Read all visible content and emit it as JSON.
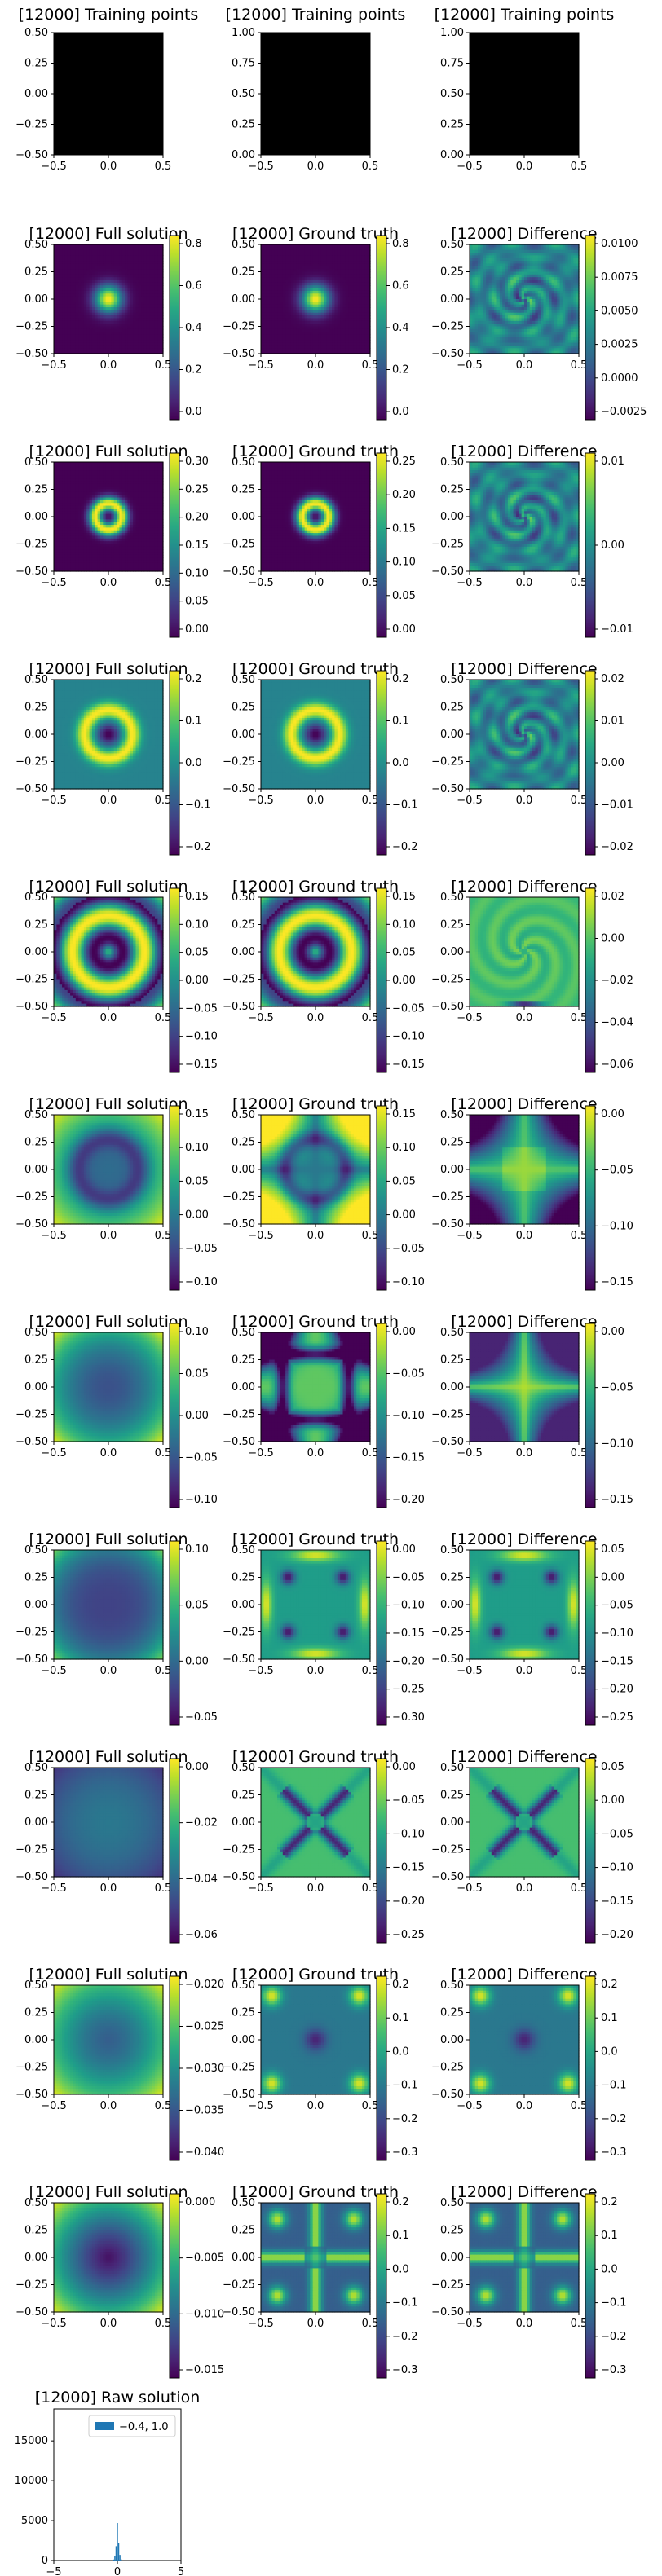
{
  "figure": {
    "background": "#ffffff"
  },
  "chart_data": [
    {
      "type": "scatter",
      "title": "[12000] Training points",
      "xlim": [
        -0.5,
        0.5
      ],
      "ylim": [
        -0.5,
        0.5
      ],
      "xticks": [
        "−0.5",
        "0.0",
        "0.5"
      ],
      "yticks": [
        "−0.50",
        "−0.25",
        "0.00",
        "0.25",
        "0.50"
      ],
      "fill": "#000000"
    },
    {
      "type": "scatter",
      "title": "[12000] Training points",
      "xlim": [
        -0.5,
        0.5
      ],
      "ylim": [
        0.0,
        1.0
      ],
      "xticks": [
        "−0.5",
        "0.0",
        "0.5"
      ],
      "yticks": [
        "0.00",
        "0.25",
        "0.50",
        "0.75",
        "1.00"
      ],
      "fill": "#000000"
    },
    {
      "type": "scatter",
      "title": "[12000] Training points",
      "xlim": [
        -0.5,
        0.5
      ],
      "ylim": [
        0.0,
        1.0
      ],
      "xticks": [
        "−0.5",
        "0.0",
        "0.5"
      ],
      "yticks": [
        "0.00",
        "0.25",
        "0.50",
        "0.75",
        "1.00"
      ],
      "fill": "#000000"
    },
    {
      "type": "heatmap",
      "title": "[12000] Full solution",
      "pattern": "blob",
      "colorbar_ticks": [
        "0.8",
        "0.6",
        "0.4",
        "0.2",
        "0.0"
      ]
    },
    {
      "type": "heatmap",
      "title": "[12000] Ground truth",
      "pattern": "blob",
      "colorbar_ticks": [
        "0.8",
        "0.6",
        "0.4",
        "0.2",
        "0.0"
      ]
    },
    {
      "type": "heatmap",
      "title": "[12000] Difference",
      "pattern": "noise",
      "colorbar_ticks": [
        "0.0100",
        "0.0075",
        "0.0050",
        "0.0025",
        "0.0000",
        "−0.0025"
      ]
    },
    {
      "type": "heatmap",
      "title": "[12000] Full solution",
      "pattern": "ring_small",
      "colorbar_ticks": [
        "0.30",
        "0.25",
        "0.20",
        "0.15",
        "0.10",
        "0.05",
        "0.00"
      ]
    },
    {
      "type": "heatmap",
      "title": "[12000] Ground truth",
      "pattern": "ring_small",
      "colorbar_ticks": [
        "0.25",
        "0.20",
        "0.15",
        "0.10",
        "0.05",
        "0.00"
      ]
    },
    {
      "type": "heatmap",
      "title": "[12000] Difference",
      "pattern": "noise",
      "colorbar_ticks": [
        "0.01",
        "0.00",
        "−0.01"
      ]
    },
    {
      "type": "heatmap",
      "title": "[12000] Full solution",
      "pattern": "ring_mid",
      "colorbar_ticks": [
        "0.2",
        "0.1",
        "0.0",
        "−0.1",
        "−0.2"
      ]
    },
    {
      "type": "heatmap",
      "title": "[12000] Ground truth",
      "pattern": "ring_mid",
      "colorbar_ticks": [
        "0.2",
        "0.1",
        "0.0",
        "−0.1",
        "−0.2"
      ]
    },
    {
      "type": "heatmap",
      "title": "[12000] Difference",
      "pattern": "noise",
      "colorbar_ticks": [
        "0.02",
        "0.01",
        "0.00",
        "−0.01",
        "−0.02"
      ]
    },
    {
      "type": "heatmap",
      "title": "[12000] Full solution",
      "pattern": "ring_large",
      "colorbar_ticks": [
        "0.15",
        "0.10",
        "0.05",
        "0.00",
        "−0.05",
        "−0.10",
        "−0.15"
      ]
    },
    {
      "type": "heatmap",
      "title": "[12000] Ground truth",
      "pattern": "ring_large",
      "colorbar_ticks": [
        "0.15",
        "0.10",
        "0.05",
        "0.00",
        "−0.05",
        "−0.10",
        "−0.15"
      ]
    },
    {
      "type": "heatmap",
      "title": "[12000] Difference",
      "pattern": "noise_bottom",
      "colorbar_ticks": [
        "0.02",
        "0.00",
        "−0.02",
        "−0.04",
        "−0.06"
      ]
    },
    {
      "type": "heatmap",
      "title": "[12000] Full solution",
      "pattern": "ring_outer",
      "colorbar_ticks": [
        "0.15",
        "0.10",
        "0.05",
        "0.00",
        "−0.05",
        "−0.10"
      ]
    },
    {
      "type": "heatmap",
      "title": "[12000] Ground truth",
      "pattern": "ring_corners",
      "colorbar_ticks": [
        "0.15",
        "0.10",
        "0.05",
        "0.00",
        "−0.05",
        "−0.10"
      ]
    },
    {
      "type": "heatmap",
      "title": "[12000] Difference",
      "pattern": "star_bright",
      "colorbar_ticks": [
        "0.00",
        "−0.05",
        "−0.10",
        "−0.15"
      ]
    },
    {
      "type": "heatmap",
      "title": "[12000] Full solution",
      "pattern": "dark_disk",
      "colorbar_ticks": [
        "0.10",
        "0.05",
        "0.00",
        "−0.05",
        "−0.10"
      ]
    },
    {
      "type": "heatmap",
      "title": "[12000] Ground truth",
      "pattern": "square_frame",
      "colorbar_ticks": [
        "0.00",
        "−0.05",
        "−0.10",
        "−0.15",
        "−0.20"
      ]
    },
    {
      "type": "heatmap",
      "title": "[12000] Difference",
      "pattern": "star_center",
      "colorbar_ticks": [
        "0.00",
        "−0.05",
        "−0.10",
        "−0.15"
      ]
    },
    {
      "type": "heatmap",
      "title": "[12000] Full solution",
      "pattern": "disk_uniform",
      "colorbar_ticks": [
        "0.10",
        "0.05",
        "0.00",
        "−0.05"
      ]
    },
    {
      "type": "heatmap",
      "title": "[12000] Ground truth",
      "pattern": "cross_spots",
      "colorbar_ticks": [
        "0.00",
        "−0.05",
        "−0.10",
        "−0.15",
        "−0.20",
        "−0.25",
        "−0.30"
      ]
    },
    {
      "type": "heatmap",
      "title": "[12000] Difference",
      "pattern": "cross_spots",
      "colorbar_ticks": [
        "0.05",
        "0.00",
        "−0.05",
        "−0.10",
        "−0.15",
        "−0.20",
        "−0.25"
      ]
    },
    {
      "type": "heatmap",
      "title": "[12000] Full solution",
      "pattern": "teal_disk",
      "colorbar_ticks": [
        "0.00",
        "−0.02",
        "−0.04",
        "−0.06"
      ]
    },
    {
      "type": "heatmap",
      "title": "[12000] Ground truth",
      "pattern": "x_arms",
      "colorbar_ticks": [
        "0.00",
        "−0.05",
        "−0.10",
        "−0.15",
        "−0.20",
        "−0.25"
      ]
    },
    {
      "type": "heatmap",
      "title": "[12000] Difference",
      "pattern": "x_arms",
      "colorbar_ticks": [
        "0.05",
        "0.00",
        "−0.05",
        "−0.10",
        "−0.15",
        "−0.20"
      ]
    },
    {
      "type": "heatmap",
      "title": "[12000] Full solution",
      "pattern": "green_disk",
      "colorbar_ticks": [
        "−0.020",
        "−0.025",
        "−0.030",
        "−0.035",
        "−0.040"
      ]
    },
    {
      "type": "heatmap",
      "title": "[12000] Ground truth",
      "pattern": "corner_bright",
      "colorbar_ticks": [
        "0.2",
        "0.1",
        "0.0",
        "−0.1",
        "−0.2",
        "−0.3"
      ]
    },
    {
      "type": "heatmap",
      "title": "[12000] Difference",
      "pattern": "corner_bright",
      "colorbar_ticks": [
        "0.2",
        "0.1",
        "0.0",
        "−0.1",
        "−0.2",
        "−0.3"
      ]
    },
    {
      "type": "heatmap",
      "title": "[12000] Full solution",
      "pattern": "dark_center",
      "colorbar_ticks": [
        "0.000",
        "−0.005",
        "−0.010",
        "−0.015"
      ]
    },
    {
      "type": "heatmap",
      "title": "[12000] Ground truth",
      "pattern": "plus_bright",
      "colorbar_ticks": [
        "0.2",
        "0.1",
        "0.0",
        "−0.1",
        "−0.2",
        "−0.3"
      ]
    },
    {
      "type": "heatmap",
      "title": "[12000] Difference",
      "pattern": "plus_bright",
      "colorbar_ticks": [
        "0.2",
        "0.1",
        "0.0",
        "−0.1",
        "−0.2",
        "−0.3"
      ]
    },
    {
      "type": "bar",
      "title": "[12000] Raw solution",
      "xlim": [
        -5,
        5
      ],
      "ylim": [
        0,
        19000
      ],
      "xticks": [
        "−5",
        "0",
        "5"
      ],
      "yticks": [
        "0",
        "5000",
        "10000",
        "15000"
      ],
      "legend": "−0.4, 1.0",
      "legend_placement": "top-center",
      "color": "#1f77b4",
      "bins": [
        {
          "x": -0.3,
          "y": 120
        },
        {
          "x": -0.2,
          "y": 600
        },
        {
          "x": -0.1,
          "y": 1800
        },
        {
          "x": 0.0,
          "y": 4700
        },
        {
          "x": 0.1,
          "y": 2200
        },
        {
          "x": 0.2,
          "y": 700
        },
        {
          "x": 0.3,
          "y": 150
        }
      ]
    }
  ]
}
